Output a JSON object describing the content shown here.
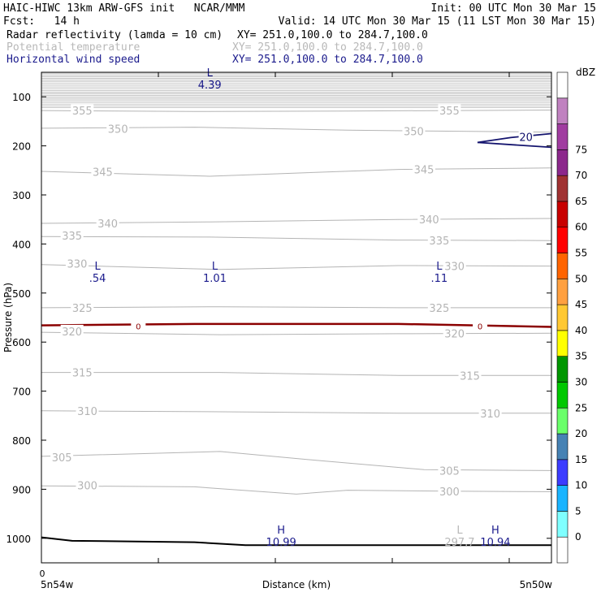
{
  "header": {
    "line1_left": "HAIC-HIWC 13km ARW-GFS init   NCAR/MMM",
    "line1_right": "Init: 00 UTC Mon 30 Mar 15",
    "line2_left": "Fcst:   14 h",
    "line2_right": "Valid: 14 UTC Mon 30 Mar 15 (11 LST Mon 30 Mar 15)",
    "fields": [
      {
        "name": "Radar reflectivity (lamda = 10 cm)",
        "xy": "XY= 251.0,100.0 to 284.7,100.0",
        "color": "#000000"
      },
      {
        "name": "Potential temperature",
        "xy": "XY= 251.0,100.0 to 284.7,100.0",
        "color": "#b8b8b8"
      },
      {
        "name": "Horizontal wind speed",
        "xy": "XY= 251.0,100.0 to 284.7,100.0",
        "color": "#1a1a8c"
      }
    ]
  },
  "chart_data": {
    "type": "contour-cross-section",
    "ylabel": "Pressure (hPa)",
    "xlabel": "Distance (km)",
    "x_tick_labels": [
      "0"
    ],
    "x_endpoint_labels": [
      "5n54w",
      "5n50w"
    ],
    "y_ticks": [
      100,
      200,
      300,
      400,
      500,
      600,
      700,
      800,
      900,
      1000
    ],
    "ylim": [
      1050,
      50
    ],
    "theta_labels": [
      {
        "value": "355",
        "x": 0.08,
        "p": 128
      },
      {
        "value": "355",
        "x": 0.8,
        "p": 128
      },
      {
        "value": "350",
        "x": 0.15,
        "p": 165
      },
      {
        "value": "350",
        "x": 0.73,
        "p": 170
      },
      {
        "value": "345",
        "x": 0.12,
        "p": 253
      },
      {
        "value": "345",
        "x": 0.75,
        "p": 248
      },
      {
        "value": "340",
        "x": 0.13,
        "p": 358
      },
      {
        "value": "340",
        "x": 0.76,
        "p": 350
      },
      {
        "value": "335",
        "x": 0.06,
        "p": 383
      },
      {
        "value": "335",
        "x": 0.78,
        "p": 393
      },
      {
        "value": "330",
        "x": 0.07,
        "p": 440
      },
      {
        "value": "330",
        "x": 0.81,
        "p": 445
      },
      {
        "value": "325",
        "x": 0.08,
        "p": 530
      },
      {
        "value": "325",
        "x": 0.78,
        "p": 530
      },
      {
        "value": "320",
        "x": 0.06,
        "p": 578
      },
      {
        "value": "320",
        "x": 0.81,
        "p": 582
      },
      {
        "value": "315",
        "x": 0.08,
        "p": 662
      },
      {
        "value": "315",
        "x": 0.84,
        "p": 668
      },
      {
        "value": "310",
        "x": 0.09,
        "p": 740
      },
      {
        "value": "310",
        "x": 0.88,
        "p": 745
      },
      {
        "value": "305",
        "x": 0.04,
        "p": 835
      },
      {
        "value": "305",
        "x": 0.8,
        "p": 862
      },
      {
        "value": "300",
        "x": 0.09,
        "p": 892
      },
      {
        "value": "300",
        "x": 0.8,
        "p": 904
      }
    ],
    "extrema_labels": [
      {
        "letter": "L",
        "value": "4.39",
        "x": 0.33,
        "p": 68,
        "color": "#1a1a8c"
      },
      {
        "letter": "L",
        "value": ".54",
        "x": 0.11,
        "p": 462,
        "color": "#1a1a8c"
      },
      {
        "letter": "L",
        "value": "1.01",
        "x": 0.34,
        "p": 462,
        "color": "#1a1a8c"
      },
      {
        "letter": "L",
        "value": ".11",
        "x": 0.78,
        "p": 462,
        "color": "#1a1a8c"
      },
      {
        "letter": "H",
        "value": "10.99",
        "x": 0.47,
        "p": 1000,
        "color": "#1a1a8c"
      },
      {
        "letter": "L",
        "value": "297.7",
        "x": 0.82,
        "p": 1000,
        "color": "#b8b8b8"
      },
      {
        "letter": "H",
        "value": "10.94",
        "x": 0.89,
        "p": 1000,
        "color": "#1a1a8c"
      }
    ],
    "wind_contour_labels": [
      {
        "value": "20",
        "x": 0.95,
        "p": 182
      },
      {
        "value": "0",
        "x": 0.19,
        "p": 566
      },
      {
        "value": "0",
        "x": 0.86,
        "p": 566
      }
    ],
    "colorbar": {
      "unit": "dBZ",
      "labels": [
        "0",
        "5",
        "10",
        "15",
        "20",
        "25",
        "30",
        "35",
        "40",
        "45",
        "50",
        "55",
        "60",
        "65",
        "70",
        "75"
      ],
      "colors": [
        "#ffffff",
        "#7fffff",
        "#1ab4ff",
        "#3c3cff",
        "#4682b4",
        "#6aff6a",
        "#00c800",
        "#009600",
        "#ffff00",
        "#ffc832",
        "#ffa040",
        "#ff6400",
        "#ff0000",
        "#c80000",
        "#a03232",
        "#8c288c",
        "#a03ca0",
        "#c082c0",
        "#ffffff"
      ]
    }
  }
}
